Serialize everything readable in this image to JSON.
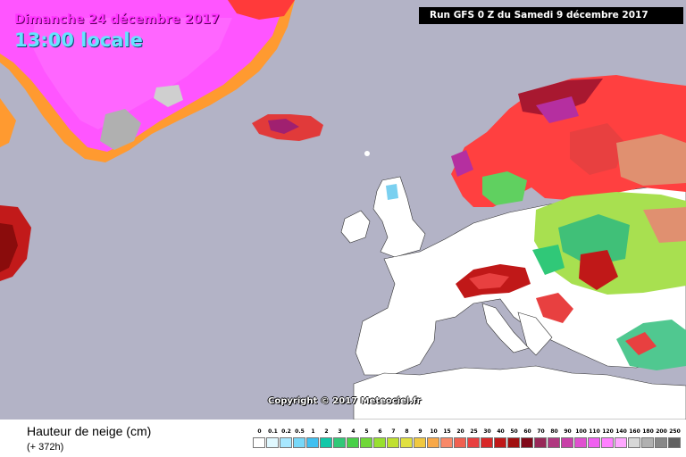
{
  "header": {
    "date": "Dimanche 24 décembre 2017",
    "time": "13:00 locale",
    "run": "Run GFS 0 Z du Samedi 9 décembre 2017"
  },
  "copyright": "Copyright © 2017 Meteociel.fr",
  "footer": {
    "title": "Hauteur de neige (cm)",
    "subtitle": "(+ 372h)"
  },
  "legend": [
    {
      "label": "0",
      "color": "#ffffff"
    },
    {
      "label": "0.1",
      "color": "#e0f8ff"
    },
    {
      "label": "0.2",
      "color": "#a8e8ff"
    },
    {
      "label": "0.5",
      "color": "#78d8f8"
    },
    {
      "label": "1",
      "color": "#40c0f0"
    },
    {
      "label": "2",
      "color": "#10c8a8"
    },
    {
      "label": "3",
      "color": "#30c878"
    },
    {
      "label": "4",
      "color": "#48d048"
    },
    {
      "label": "5",
      "color": "#70d838"
    },
    {
      "label": "6",
      "color": "#98e030"
    },
    {
      "label": "7",
      "color": "#c0e030"
    },
    {
      "label": "8",
      "color": "#e0e040"
    },
    {
      "label": "9",
      "color": "#f0c840"
    },
    {
      "label": "10",
      "color": "#f8a848"
    },
    {
      "label": "15",
      "color": "#f88868"
    },
    {
      "label": "20",
      "color": "#f06050"
    },
    {
      "label": "25",
      "color": "#e84040"
    },
    {
      "label": "30",
      "color": "#d82828"
    },
    {
      "label": "40",
      "color": "#c01818"
    },
    {
      "label": "50",
      "color": "#a01010"
    },
    {
      "label": "60",
      "color": "#800818"
    },
    {
      "label": "70",
      "color": "#982858"
    },
    {
      "label": "80",
      "color": "#b03880"
    },
    {
      "label": "90",
      "color": "#c840a8"
    },
    {
      "label": "100",
      "color": "#e050d0"
    },
    {
      "label": "110",
      "color": "#f060f0"
    },
    {
      "label": "120",
      "color": "#ff80ff"
    },
    {
      "label": "140",
      "color": "#ffa8ff"
    },
    {
      "label": "160",
      "color": "#d8d8d8"
    },
    {
      "label": "180",
      "color": "#b0b0b0"
    },
    {
      "label": "200",
      "color": "#888888"
    },
    {
      "label": "250",
      "color": "#606060"
    }
  ]
}
